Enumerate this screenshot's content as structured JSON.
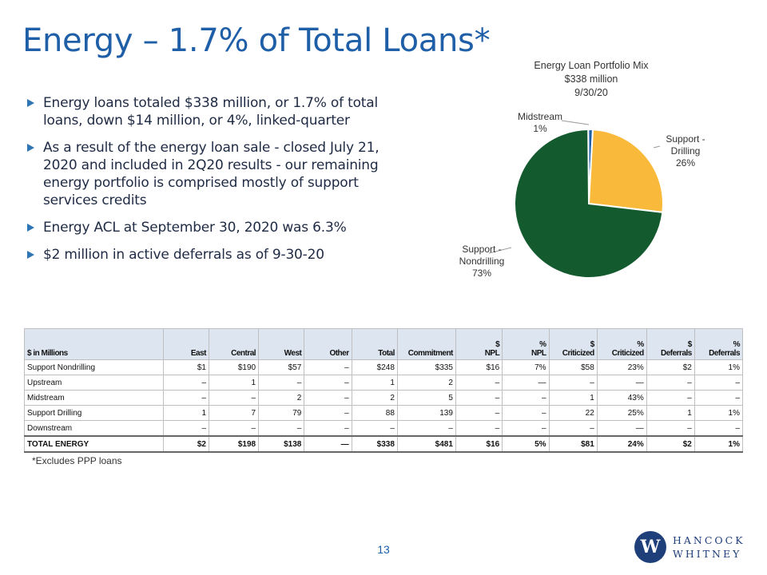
{
  "title": "Energy – 1.7% of Total Loans*",
  "bullets": [
    "Energy loans totaled $338 million, or 1.7% of total loans, down $14 million, or 4%, linked-quarter",
    "As a result of the energy loan sale - closed July 21, 2020 and included in 2Q20 results - our remaining energy portfolio is comprised mostly of support services credits",
    "Energy ACL at September 30, 2020 was 6.3%",
    "$2 million in active deferrals as of 9-30-20"
  ],
  "chart_data": {
    "type": "pie",
    "title": [
      "Energy Loan Portfolio Mix",
      "$338 million",
      "9/30/20"
    ],
    "slices": [
      {
        "label": [
          "Midstream"
        ],
        "pct_label": "1%",
        "value": 1,
        "color": "#1f5fa8"
      },
      {
        "label": [
          "Support -",
          "Drilling"
        ],
        "pct_label": "26%",
        "value": 26,
        "color": "#f9b93a"
      },
      {
        "label": [
          "Support -",
          "Nondrilling"
        ],
        "pct_label": "73%",
        "value": 73,
        "color": "#135a2e"
      }
    ]
  },
  "table": {
    "headers": [
      [
        "$ in Millions"
      ],
      [
        "East"
      ],
      [
        "Central"
      ],
      [
        "West"
      ],
      [
        "Other"
      ],
      [
        "Total"
      ],
      [
        "Commitment"
      ],
      [
        "$",
        "NPL"
      ],
      [
        "%",
        "NPL"
      ],
      [
        "$",
        "Criticized"
      ],
      [
        "%",
        "Criticized"
      ],
      [
        "$",
        "Deferrals"
      ],
      [
        "%",
        "Deferrals"
      ]
    ],
    "rows": [
      [
        "Support Nondrilling",
        "$1",
        "$190",
        "$57",
        "–",
        "$248",
        "$335",
        "$16",
        "7%",
        "$58",
        "23%",
        "$2",
        "1%"
      ],
      [
        "Upstream",
        "–",
        "1",
        "–",
        "–",
        "1",
        "2",
        "–",
        "—",
        "–",
        "—",
        "–",
        "–"
      ],
      [
        "Midstream",
        "–",
        "–",
        "2",
        "–",
        "2",
        "5",
        "–",
        "–",
        "1",
        "43%",
        "–",
        "–"
      ],
      [
        "Support Drilling",
        "1",
        "7",
        "79",
        "–",
        "88",
        "139",
        "–",
        "–",
        "22",
        "25%",
        "1",
        "1%"
      ],
      [
        "Downstream",
        "–",
        "–",
        "–",
        "–",
        "–",
        "–",
        "–",
        "–",
        "–",
        "—",
        "–",
        "–"
      ]
    ],
    "total": [
      "TOTAL ENERGY",
      "$2",
      "$198",
      "$138",
      "—",
      "$338",
      "$481",
      "$16",
      "5%",
      "$81",
      "24%",
      "$2",
      "1%"
    ]
  },
  "footnote": "*Excludes PPP loans",
  "page_number": "13",
  "logo": {
    "mark": "W",
    "line1": "HANCOCK",
    "line2": "WHITNEY"
  }
}
